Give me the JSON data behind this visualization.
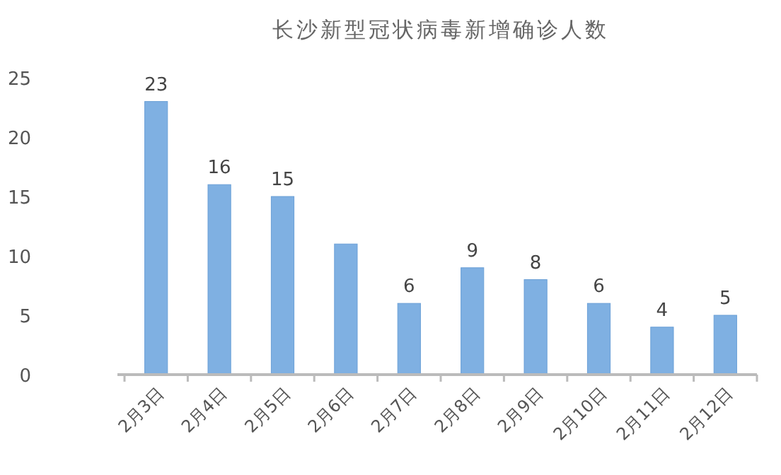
{
  "chart_data": {
    "type": "bar",
    "title": "长沙新型冠状病毒新增确诊人数",
    "categories": [
      "2月3日",
      "2月4日",
      "2月5日",
      "2月6日",
      "2月7日",
      "2月8日",
      "2月9日",
      "2月10日",
      "2月11日",
      "2月12日"
    ],
    "values": [
      23,
      16,
      15,
      11,
      6,
      9,
      8,
      6,
      4,
      5
    ],
    "value_labels": [
      "23",
      "16",
      "15",
      null,
      "6",
      "9",
      "8",
      "6",
      "4",
      "5"
    ],
    "color": "#7fb0e2",
    "ylim": [
      0,
      25
    ],
    "yticks": [
      0,
      5,
      10,
      15,
      20,
      25
    ],
    "grid": false
  }
}
